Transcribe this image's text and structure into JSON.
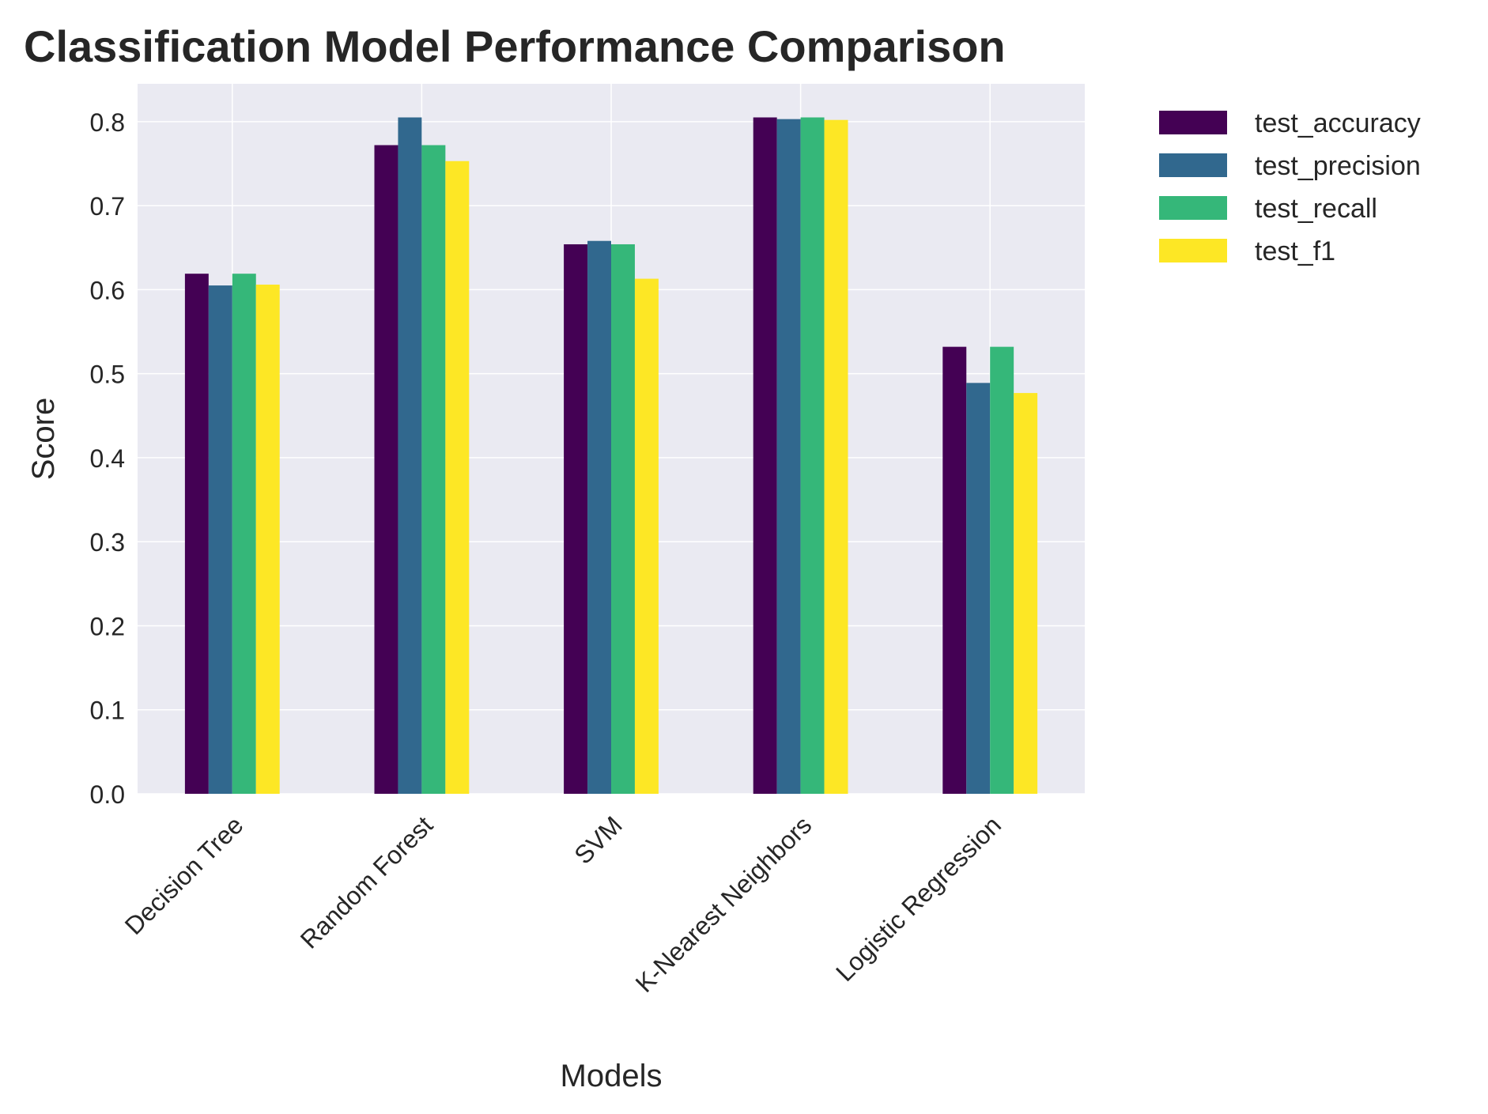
{
  "chart_data": {
    "type": "bar",
    "title": "Classification Model Performance Comparison",
    "xlabel": "Models",
    "ylabel": "Score",
    "ylim": [
      0,
      0.845
    ],
    "yticks": [
      0.0,
      0.1,
      0.2,
      0.3,
      0.4,
      0.5,
      0.6,
      0.7,
      0.8
    ],
    "ytick_labels": [
      "0.0",
      "0.1",
      "0.2",
      "0.3",
      "0.4",
      "0.5",
      "0.6",
      "0.7",
      "0.8"
    ],
    "categories": [
      "Decision Tree",
      "Random Forest",
      "SVM",
      "K-Nearest Neighbors",
      "Logistic Regression"
    ],
    "series": [
      {
        "name": "test_accuracy",
        "color": "#440154",
        "values": [
          0.619,
          0.772,
          0.654,
          0.805,
          0.532
        ]
      },
      {
        "name": "test_precision",
        "color": "#31688e",
        "values": [
          0.605,
          0.805,
          0.658,
          0.803,
          0.489
        ]
      },
      {
        "name": "test_recall",
        "color": "#35b779",
        "values": [
          0.619,
          0.772,
          0.654,
          0.805,
          0.532
        ]
      },
      {
        "name": "test_f1",
        "color": "#fde725",
        "values": [
          0.606,
          0.753,
          0.613,
          0.802,
          0.477
        ]
      }
    ],
    "legend_position": "outside-top-right",
    "grid": true,
    "plot_background": "#eaeaf2",
    "grid_color": "#ffffff"
  }
}
